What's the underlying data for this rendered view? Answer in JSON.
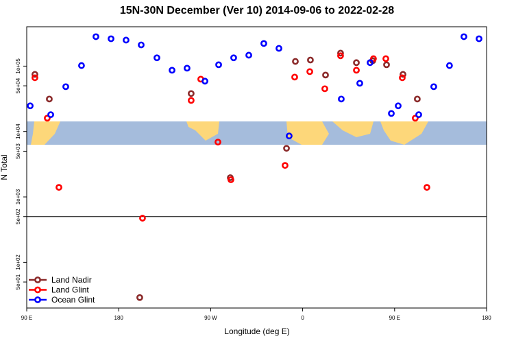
{
  "chart_data": {
    "type": "scatter",
    "title": "15N-30N December (Ver 10)   2014-09-06 to 2022-02-28",
    "x_label": "Longitude (deg E)",
    "y_label": "N Total",
    "log_y": true,
    "xlim": [
      90,
      540
    ],
    "xticks": [
      {
        "value": 90,
        "label": "90 E"
      },
      180,
      {
        "value": 270,
        "label": "90 W"
      },
      {
        "value": 360,
        "label": "0"
      },
      {
        "value": 450,
        "label": "90 E"
      },
      {
        "value": 540,
        "label": "180"
      }
    ],
    "ylim": [
      20,
      400000
    ],
    "yticks": [
      {
        "value": 100000,
        "label": "1e+05"
      },
      {
        "value": 50000,
        "label": "5e+04"
      },
      {
        "value": 10000,
        "label": "1e+04"
      },
      {
        "value": 5000,
        "label": "5e+03"
      },
      {
        "value": 1000,
        "label": "1e+03"
      },
      {
        "value": 500,
        "label": "5e+02"
      },
      {
        "value": 100,
        "label": "1e+02"
      },
      {
        "value": 50,
        "label": "5e+01"
      }
    ],
    "reference_line": 500,
    "legend": "bottom-left",
    "series": [
      {
        "name": "Land Nadir",
        "color": "#8b2a2a",
        "x": [
          98.0,
          112.1,
          200.6,
          250.9,
          289.2,
          344.2,
          352.9,
          367.6,
          382.4,
          397.1,
          412.6,
          428.6,
          442.1,
          458.2,
          472.2
        ],
        "values": [
          74800,
          31400,
          28.9,
          38100,
          1970,
          5540,
          118000,
          124000,
          73100,
          158000,
          113000,
          121000,
          105000,
          74800,
          31400
        ]
      },
      {
        "name": "Land Glint",
        "color": "#ff0000",
        "x": [
          98.0,
          110.1,
          121.5,
          203.3,
          250.9,
          260.3,
          277.1,
          289.8,
          342.8,
          352.2,
          367.0,
          381.7,
          397.1,
          412.6,
          429.3,
          441.4,
          457.5,
          470.2,
          481.6
        ],
        "values": [
          66400,
          16000,
          1400,
          473,
          29900,
          63200,
          6890,
          1830,
          3030,
          68000,
          82400,
          45100,
          144000,
          86500,
          130000,
          130000,
          66400,
          16000,
          1400
        ]
      },
      {
        "name": "Ocean Glint",
        "color": "#0000ff",
        "x": [
          93.4,
          113.5,
          128.2,
          143.6,
          157.7,
          172.5,
          187.2,
          202.0,
          217.4,
          232.2,
          246.9,
          264.4,
          277.8,
          292.5,
          307.3,
          322.0,
          336.8,
          346.8,
          397.8,
          415.9,
          426.0,
          446.8,
          453.5,
          473.6,
          488.3,
          503.7,
          517.8,
          532.6
        ],
        "values": [
          24700,
          18100,
          48500,
          102000,
          282000,
          262000,
          250000,
          211000,
          134000,
          86500,
          93000,
          58900,
          105000,
          134000,
          147000,
          222000,
          187000,
          8550,
          31400,
          54700,
          113000,
          18900,
          24700,
          18100,
          48500,
          102000,
          282000,
          262000
        ]
      }
    ]
  }
}
